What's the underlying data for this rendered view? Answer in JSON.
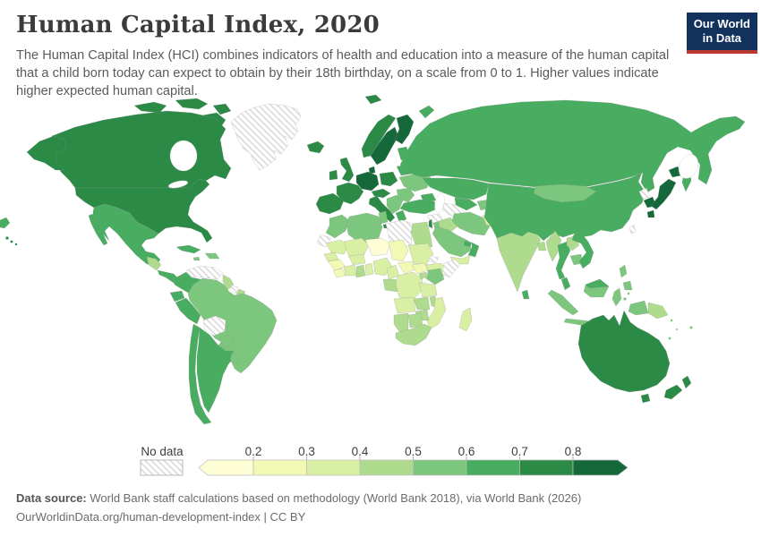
{
  "header": {
    "title": "Human Capital Index, 2020",
    "subtitle": "The Human Capital Index (HCI) combines indicators of health and education into a measure of the human capital that a child born today can expect to obtain by their 18th birthday, on a scale from 0 to 1. Higher values indicate higher expected human capital."
  },
  "logo": {
    "line1": "Our World",
    "line2": "in Data",
    "bg_color": "#12315c",
    "accent_color": "#bc392f"
  },
  "footer": {
    "datasource_label": "Data source:",
    "datasource_text": " World Bank staff calculations based on methodology (World Bank 2018), via World Bank (2026)",
    "line2_link": "OurWorldinData.org/human-development-index",
    "line2_suffix": " | CC BY"
  },
  "chart_data": {
    "type": "heatmap",
    "subtype": "world-choropleth",
    "title": "Human Capital Index, 2020",
    "value_scale": [
      0,
      1
    ],
    "legend": {
      "no_data_label": "No data",
      "tick_labels": [
        "0.2",
        "0.3",
        "0.4",
        "0.5",
        "0.6",
        "0.7",
        "0.8"
      ],
      "bin_ranges": [
        "<0.2",
        "0.2-0.3",
        "0.3-0.4",
        "0.4-0.5",
        "0.5-0.6",
        "0.6-0.7",
        "0.7-0.8",
        ">0.8"
      ],
      "bin_colors": [
        "#fdfdd6",
        "#f1f9b4",
        "#d9efa3",
        "#aedb8e",
        "#7cc67d",
        "#48ad60",
        "#2b8b46",
        "#14683a"
      ],
      "nodata_pattern": "diagonal-hatch"
    },
    "regions": {
      "greenland": 0,
      "venezuela": 0,
      "suriname": 0,
      "bolivia": 0,
      "western-sahara": 0,
      "libya": 0,
      "syria": 0,
      "eritrea": 0,
      "somalia": 0,
      "turkmenistan": 0,
      "north-korea": 0,
      "taiwan": 0,
      "niger": 1,
      "chad": 2,
      "guinea": 2,
      "sierra-leone-liberia": 2,
      "central-african-republic": 2,
      "south-sudan": 2,
      "mauritania": 3,
      "mali": 3,
      "senegal": 3,
      "burkina-faso": 3,
      "cote-divoire": 3,
      "togo-benin": 3,
      "nigeria": 3,
      "cameroon": 3,
      "sudan": 3,
      "ethiopia": 3,
      "tanzania": 3,
      "angola": 3,
      "mozambique": 3,
      "madagascar": 3,
      "drc": 3,
      "afghanistan": 3,
      "pakistan": 3,
      "yemen": 3,
      "central-america": 4,
      "guyana": 4,
      "french-guiana": 4,
      "iraq": 4,
      "india": 4,
      "bangladesh": 4,
      "ghana": 4,
      "gabon-congo": 4,
      "uganda": 4,
      "zambia": 4,
      "malawi": 4,
      "zimbabwe": 4,
      "namibia": 4,
      "botswana": 4,
      "south-africa": 4,
      "myanmar": 4,
      "laos": 4,
      "papua-new-guinea": 4,
      "egypt": 4,
      "vanuatu": 4,
      "brazil": 5,
      "paraguay": 5,
      "uruguay": 5,
      "hispaniola": 5,
      "jamaica": 5,
      "balkans": 5,
      "ukraine": 5,
      "romania-bulgaria": 5,
      "iran": 5,
      "saudi-arabia": 5,
      "kyrgyzstan-tajikistan": 5,
      "morocco": 5,
      "algeria": 5,
      "tunisia": 5,
      "mongolia": 5,
      "cambodia": 5,
      "philippines": 5,
      "sumatra": 5,
      "java": 5,
      "borneo": 5,
      "sulawesi": 5,
      "west-papua": 5,
      "indonesia-islands": 5,
      "kenya": 5,
      "solomon-islands": 5,
      "fiji": 5,
      "new-caledonia": 5,
      "mexico": 6,
      "cuba": 6,
      "costa-rica-panama": 6,
      "colombia": 6,
      "ecuador": 6,
      "peru": 6,
      "chile": 6,
      "argentina": 6,
      "russia": 6,
      "kazakhstan": 6,
      "uzbekistan": 6,
      "caucasus": 6,
      "turkey": 6,
      "oman": 6,
      "uae": 6,
      "baltics": 6,
      "belarus": 6,
      "greece": 6,
      "sri-lanka": 6,
      "china": 6,
      "vietnam": 6,
      "thailand": 6,
      "malaysia": 6,
      "malaysia-borneo": 6,
      "canada": 7,
      "usa": 7,
      "iceland": 7,
      "uk": 7,
      "ireland": 7,
      "norway": 7,
      "france": 7,
      "spain-portugal": 7,
      "italy": 7,
      "austria-czechia": 7,
      "poland": 7,
      "israel": 7,
      "australia": 7,
      "new-zealand": 7,
      "sweden": 8,
      "finland": 8,
      "denmark": 8,
      "germany-benelux": 8,
      "south-korea": 8,
      "japan": 8
    }
  }
}
